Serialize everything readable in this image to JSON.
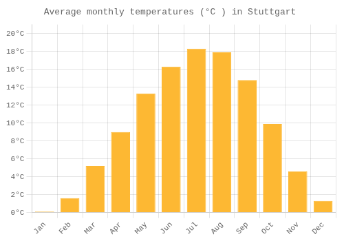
{
  "chart_data": {
    "type": "bar",
    "title": "Average monthly temperatures (°C ) in Stuttgart",
    "categories": [
      "Jan",
      "Feb",
      "Mar",
      "Apr",
      "May",
      "Jun",
      "Jul",
      "Aug",
      "Sep",
      "Oct",
      "Nov",
      "Dec"
    ],
    "values": [
      0.1,
      1.6,
      5.2,
      9.0,
      13.3,
      16.3,
      18.3,
      17.9,
      14.8,
      9.9,
      4.6,
      1.3
    ],
    "color": "#FDB833",
    "ylim": [
      0,
      21.0
    ],
    "yticks": [
      {
        "value": 0,
        "label": "0°C"
      },
      {
        "value": 2,
        "label": "2°C"
      },
      {
        "value": 4,
        "label": "4°C"
      },
      {
        "value": 6,
        "label": "6°C"
      },
      {
        "value": 8,
        "label": "8°C"
      },
      {
        "value": 10,
        "label": "10°C"
      },
      {
        "value": 12,
        "label": "12°C"
      },
      {
        "value": 14,
        "label": "14°C"
      },
      {
        "value": 16,
        "label": "16°C"
      },
      {
        "value": 18,
        "label": "18°C"
      },
      {
        "value": 20,
        "label": "20°C"
      }
    ],
    "grid": true
  }
}
